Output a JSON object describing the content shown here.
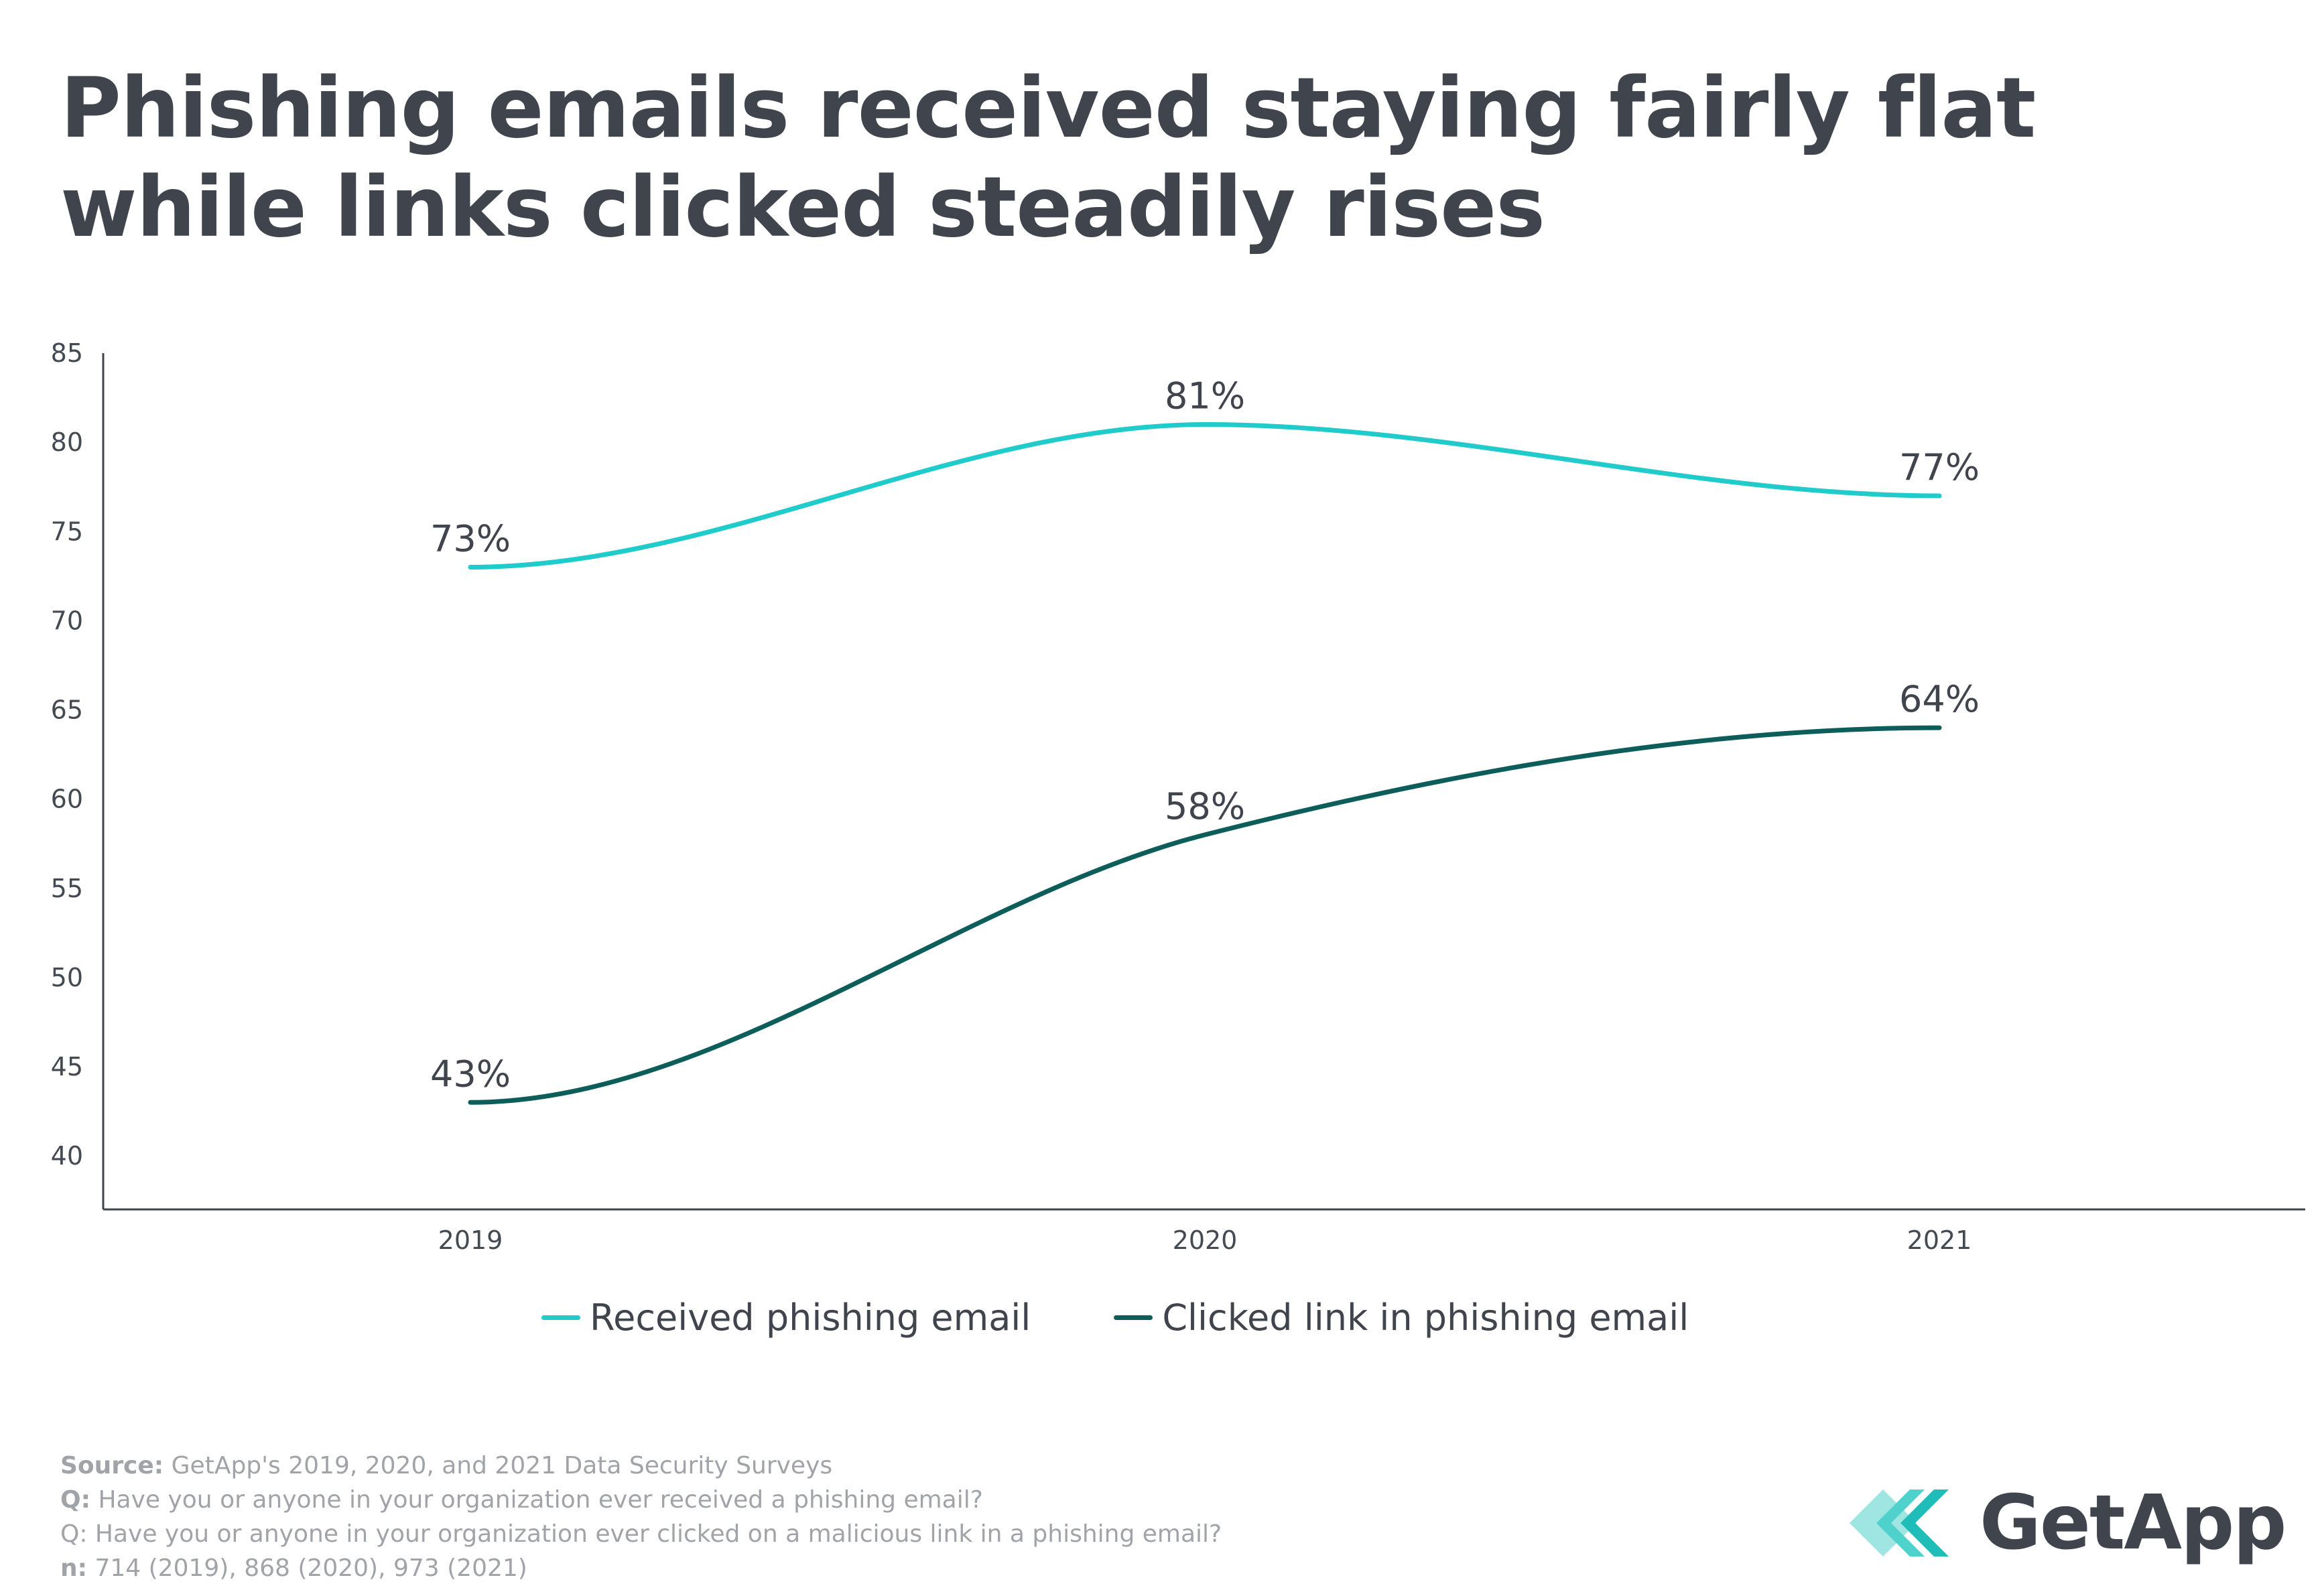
{
  "title": "Phishing emails received staying fairly flat while links clicked steadily rises",
  "chart_data": {
    "type": "line",
    "title": "Phishing emails received staying fairly flat while links clicked steadily rises",
    "categories": [
      "2019",
      "2020",
      "2021"
    ],
    "ylim": [
      37,
      85
    ],
    "yticks": [
      40,
      45,
      50,
      55,
      60,
      65,
      70,
      75,
      80,
      85
    ],
    "xlabel": "",
    "ylabel": "",
    "grid": false,
    "legend_position": "bottom",
    "series": [
      {
        "name": "Received phishing email",
        "color": "#1fcccb",
        "values": [
          73,
          81,
          77
        ],
        "labels": [
          "73%",
          "81%",
          "77%"
        ]
      },
      {
        "name": "Clicked link in phishing email",
        "color": "#0d5e5a",
        "values": [
          43,
          58,
          64
        ],
        "labels": [
          "43%",
          "58%",
          "64%"
        ]
      }
    ]
  },
  "source": {
    "source_label": "Source:",
    "source_text": "GetApp's 2019, 2020, and 2021 Data Security Surveys",
    "q1_label": "Q:",
    "q1_text": "Have you or anyone in your organization ever received a phishing email?",
    "q2_text": "Q: Have you or anyone in your organization ever clicked on a malicious link in a phishing email?",
    "n_label": "n:",
    "n_text": "714 (2019), 868 (2020), 973 (2021)"
  },
  "logo": {
    "text": "GetApp",
    "colors": {
      "light": "#9fe6e3",
      "mid": "#4fd1cc",
      "dark": "#1fbdb8"
    }
  }
}
